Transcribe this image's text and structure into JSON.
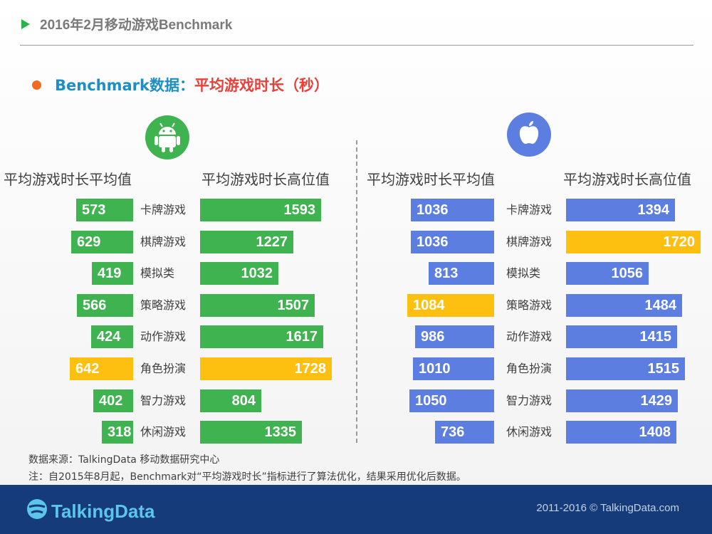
{
  "header": {
    "title": "2016年2月移动游戏Benchmark"
  },
  "subtitle": {
    "prefix": "Benchmark数据：",
    "metric": "平均游戏时长（秒）"
  },
  "columns": {
    "android_avg": "平均游戏时长平均值",
    "android_high": "平均游戏时长高位值",
    "ios_avg": "平均游戏时长平均值",
    "ios_high": "平均游戏时长高位值"
  },
  "icons": {
    "android": "android-robot-icon",
    "ios": "apple-icon"
  },
  "colors": {
    "android": "#3fb34f",
    "ios": "#5c7ee0",
    "highlight": "#fec010"
  },
  "chart_data": [
    {
      "type": "bar",
      "platform": "Android",
      "categories": [
        "卡牌游戏",
        "棋牌游戏",
        "模拟类",
        "策略游戏",
        "动作游戏",
        "角色扮演",
        "智力游戏",
        "休闲游戏"
      ],
      "series": [
        {
          "name": "平均游戏时长平均值",
          "values": [
            573,
            629,
            419,
            566,
            424,
            642,
            402,
            318
          ],
          "highlight_index": 5
        },
        {
          "name": "平均游戏时长高位值",
          "values": [
            1593,
            1227,
            1032,
            1507,
            1617,
            1728,
            804,
            1335
          ],
          "highlight_index": 5
        }
      ]
    },
    {
      "type": "bar",
      "platform": "iOS",
      "categories": [
        "卡牌游戏",
        "棋牌游戏",
        "模拟类",
        "策略游戏",
        "动作游戏",
        "角色扮演",
        "智力游戏",
        "休闲游戏"
      ],
      "series": [
        {
          "name": "平均游戏时长平均值",
          "values": [
            1036,
            1036,
            813,
            1084,
            986,
            1010,
            1050,
            736
          ],
          "highlight_index": 3
        },
        {
          "name": "平均游戏时长高位值",
          "values": [
            1394,
            1720,
            1056,
            1484,
            1415,
            1515,
            1429,
            1408
          ],
          "highlight_index": 1
        }
      ]
    }
  ],
  "notes": {
    "source": "数据来源：TalkingData 移动数据研究中心",
    "remark": "注：自2015年8月起，Benchmark对“平均游戏时长”指标进行了算法优化，结果采用优化后数据。"
  },
  "footer": {
    "logo_text": "TalkingData",
    "copyright": "2011-2016 © TalkingData.com"
  }
}
